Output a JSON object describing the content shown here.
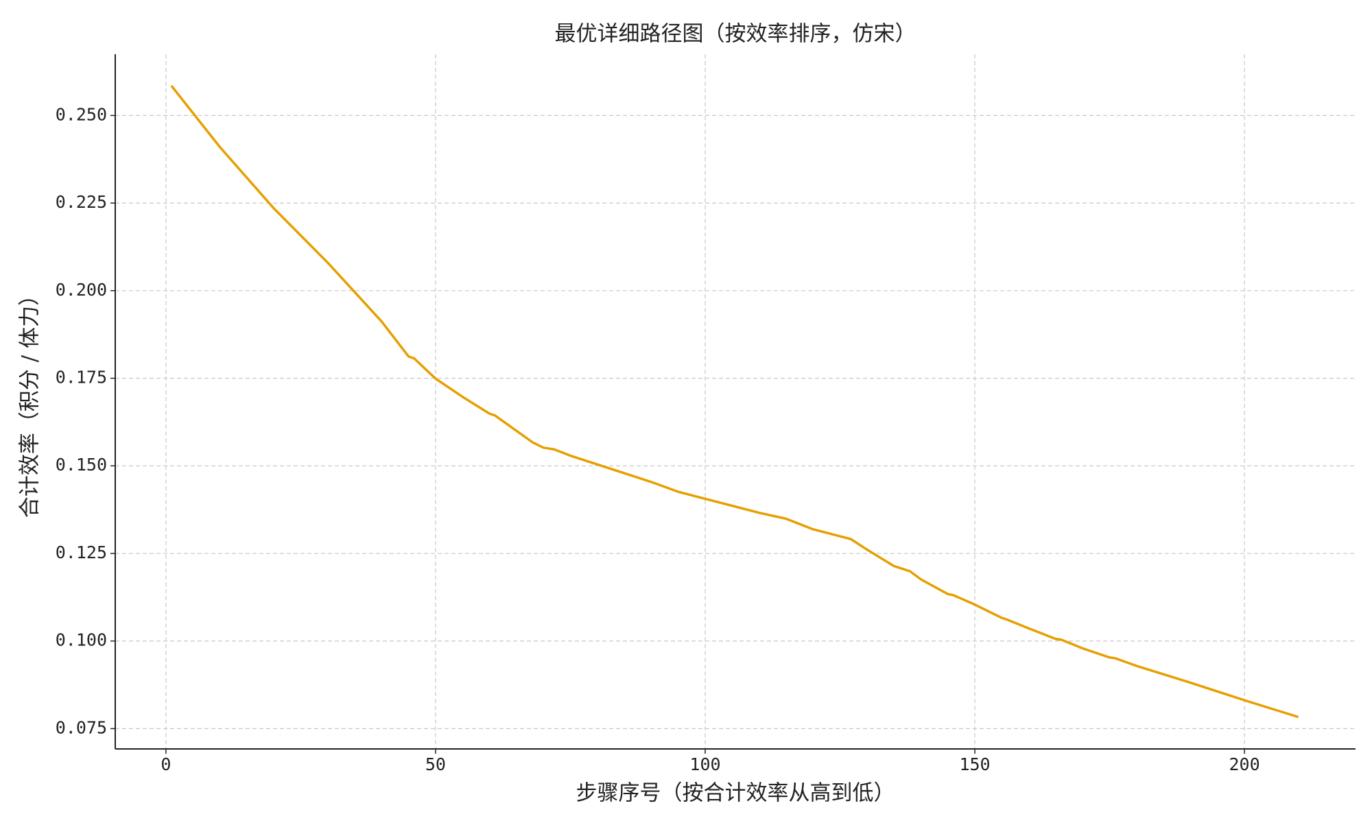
{
  "chart_data": {
    "type": "line",
    "title": "最优详细路径图（按效率排序，仿宋）",
    "x_label": "步骤序号（按合计效率从高到低）",
    "y_label": "合计效率（积分 / 体力）",
    "x": [
      1,
      10,
      20,
      30,
      40,
      45,
      46,
      50,
      55,
      60,
      61,
      68,
      70,
      72,
      75,
      80,
      85,
      90,
      95,
      100,
      105,
      110,
      115,
      120,
      125,
      127,
      130,
      135,
      138,
      140,
      145,
      146,
      150,
      155,
      156,
      160,
      165,
      166,
      170,
      175,
      176,
      180,
      190,
      200,
      210
    ],
    "series": [
      {
        "name": null,
        "color": "#e69f00",
        "values": [
          0.2585,
          0.241,
          0.2235,
          0.208,
          0.1912,
          0.1812,
          0.1807,
          0.1749,
          0.1697,
          0.1649,
          0.1644,
          0.1567,
          0.1552,
          0.1547,
          0.1529,
          0.1504,
          0.1479,
          0.1454,
          0.1426,
          0.1406,
          0.1386,
          0.1366,
          0.1349,
          0.1319,
          0.1299,
          0.1291,
          0.1261,
          0.1214,
          0.1199,
          0.1176,
          0.1134,
          0.1131,
          0.1104,
          0.1066,
          0.1061,
          0.1036,
          0.1006,
          0.1004,
          0.0979,
          0.0953,
          0.0951,
          0.0929,
          0.0881,
          0.0831,
          0.0783
        ]
      }
    ],
    "xlim": [
      -9.4,
      220.6
    ],
    "ylim": [
      0.0692,
      0.2675
    ],
    "xticks": [
      0,
      50,
      100,
      150,
      200
    ],
    "yticks": [
      {
        "value": 0.075,
        "label": "0.075"
      },
      {
        "value": 0.1,
        "label": "0.100"
      },
      {
        "value": 0.125,
        "label": "0.125"
      },
      {
        "value": 0.15,
        "label": "0.150"
      },
      {
        "value": 0.175,
        "label": "0.175"
      },
      {
        "value": 0.2,
        "label": "0.200"
      },
      {
        "value": 0.225,
        "label": "0.225"
      },
      {
        "value": 0.25,
        "label": "0.250"
      }
    ],
    "grid": true
  }
}
